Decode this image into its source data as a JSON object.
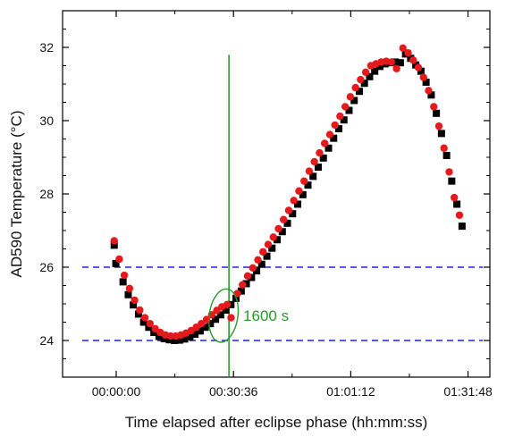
{
  "chart_data": {
    "type": "scatter",
    "xlabel": "Time elapsed after eclipse phase (hh:mm:ss)",
    "ylabel": "AD590 Temperature (°C)",
    "x_unit": "hh:mm:ss",
    "xlim": [
      "-00:14:00",
      "01:37:30"
    ],
    "ylim": [
      23.0,
      33.0
    ],
    "x_ticks": [
      "00:00:00",
      "00:30:36",
      "01:01:12",
      "01:31:48"
    ],
    "y_ticks": [
      "24",
      "26",
      "28",
      "30",
      "32"
    ],
    "grid": false,
    "series": [
      {
        "marker": "square",
        "color": "#000000",
        "points": [
          [
            "-00:00:32",
            26.6
          ],
          [
            "-00:00:06",
            26.1
          ],
          [
            "00:01:47",
            25.6
          ],
          [
            "00:03:08",
            25.25
          ],
          [
            "00:04:28",
            24.97
          ],
          [
            "00:05:49",
            24.72
          ],
          [
            "00:07:09",
            24.5
          ],
          [
            "00:08:29",
            24.36
          ],
          [
            "00:09:50",
            24.22
          ],
          [
            "00:11:10",
            24.11
          ],
          [
            "00:12:31",
            24.05
          ],
          [
            "00:13:51",
            24.02
          ],
          [
            "00:15:12",
            24.0
          ],
          [
            "00:16:32",
            24.01
          ],
          [
            "00:17:52",
            24.04
          ],
          [
            "00:19:13",
            24.1
          ],
          [
            "00:20:33",
            24.17
          ],
          [
            "00:21:54",
            24.26
          ],
          [
            "00:23:14",
            24.36
          ],
          [
            "00:24:34",
            24.46
          ],
          [
            "00:25:55",
            24.58
          ],
          [
            "00:27:15",
            24.7
          ],
          [
            "00:28:36",
            24.83
          ],
          [
            "00:29:56",
            24.98
          ],
          [
            "00:31:16",
            25.15
          ],
          [
            "00:32:37",
            25.35
          ],
          [
            "00:33:57",
            25.55
          ],
          [
            "00:35:18",
            25.72
          ],
          [
            "00:36:38",
            25.9
          ],
          [
            "00:37:58",
            26.08
          ],
          [
            "00:39:19",
            26.3
          ],
          [
            "00:40:39",
            26.52
          ],
          [
            "00:42:00",
            26.75
          ],
          [
            "00:43:20",
            26.97
          ],
          [
            "00:44:40",
            27.2
          ],
          [
            "00:46:01",
            27.46
          ],
          [
            "00:47:21",
            27.72
          ],
          [
            "00:48:42",
            27.98
          ],
          [
            "00:50:02",
            28.24
          ],
          [
            "00:51:22",
            28.48
          ],
          [
            "00:52:43",
            28.73
          ],
          [
            "00:54:03",
            28.98
          ],
          [
            "00:55:24",
            29.25
          ],
          [
            "00:56:44",
            29.52
          ],
          [
            "00:58:04",
            29.78
          ],
          [
            "00:59:25",
            30.02
          ],
          [
            "01:00:45",
            30.28
          ],
          [
            "01:02:06",
            30.55
          ],
          [
            "01:03:26",
            30.8
          ],
          [
            "01:04:46",
            31.02
          ],
          [
            "01:06:07",
            31.2
          ],
          [
            "01:07:27",
            31.35
          ],
          [
            "01:08:48",
            31.48
          ],
          [
            "01:10:08",
            31.55
          ],
          [
            "01:11:28",
            31.58
          ],
          [
            "01:12:49",
            31.6
          ],
          [
            "01:14:09",
            31.58
          ],
          [
            "01:15:30",
            31.82
          ],
          [
            "01:16:50",
            31.7
          ],
          [
            "01:18:10",
            31.52
          ],
          [
            "01:19:31",
            31.35
          ],
          [
            "01:20:51",
            31.05
          ],
          [
            "01:22:12",
            30.7
          ],
          [
            "01:23:32",
            30.2
          ],
          [
            "01:24:52",
            29.65
          ],
          [
            "01:26:13",
            29.05
          ],
          [
            "01:27:33",
            28.35
          ],
          [
            "01:28:54",
            27.72
          ],
          [
            "01:30:14",
            27.12
          ]
        ]
      },
      {
        "marker": "circle",
        "color": "#e41a1c",
        "points": [
          [
            "-00:00:32",
            26.72
          ],
          [
            "00:00:47",
            26.22
          ],
          [
            "00:02:07",
            25.78
          ],
          [
            "00:03:28",
            25.42
          ],
          [
            "00:04:48",
            25.1
          ],
          [
            "00:06:09",
            24.83
          ],
          [
            "00:07:29",
            24.62
          ],
          [
            "00:08:49",
            24.46
          ],
          [
            "00:10:10",
            24.32
          ],
          [
            "00:11:30",
            24.22
          ],
          [
            "00:12:51",
            24.15
          ],
          [
            "00:14:11",
            24.12
          ],
          [
            "00:15:32",
            24.12
          ],
          [
            "00:16:52",
            24.15
          ],
          [
            "00:18:12",
            24.2
          ],
          [
            "00:19:33",
            24.27
          ],
          [
            "00:20:53",
            24.36
          ],
          [
            "00:22:14",
            24.46
          ],
          [
            "00:23:34",
            24.57
          ],
          [
            "00:24:54",
            24.7
          ],
          [
            "00:26:15",
            24.82
          ],
          [
            "00:27:35",
            24.92
          ],
          [
            "00:28:56",
            24.98
          ],
          [
            "00:29:58",
            24.62
          ],
          [
            "00:31:36",
            25.28
          ],
          [
            "00:32:57",
            25.52
          ],
          [
            "00:34:17",
            25.76
          ],
          [
            "00:35:38",
            25.98
          ],
          [
            "00:36:58",
            26.2
          ],
          [
            "00:38:18",
            26.42
          ],
          [
            "00:39:39",
            26.62
          ],
          [
            "00:40:59",
            26.82
          ],
          [
            "00:42:20",
            27.05
          ],
          [
            "00:43:40",
            27.3
          ],
          [
            "00:45:00",
            27.55
          ],
          [
            "00:46:21",
            27.82
          ],
          [
            "00:47:41",
            28.08
          ],
          [
            "00:49:02",
            28.35
          ],
          [
            "00:50:22",
            28.62
          ],
          [
            "00:51:42",
            28.88
          ],
          [
            "00:53:03",
            29.12
          ],
          [
            "00:54:23",
            29.38
          ],
          [
            "00:55:44",
            29.62
          ],
          [
            "00:57:04",
            29.88
          ],
          [
            "00:58:24",
            30.12
          ],
          [
            "00:59:45",
            30.38
          ],
          [
            "01:01:05",
            30.65
          ],
          [
            "01:02:26",
            30.9
          ],
          [
            "01:03:46",
            31.12
          ],
          [
            "01:05:06",
            31.32
          ],
          [
            "01:06:27",
            31.5
          ],
          [
            "01:07:47",
            31.55
          ],
          [
            "01:09:08",
            31.6
          ],
          [
            "01:10:28",
            31.62
          ],
          [
            "01:11:48",
            31.6
          ],
          [
            "01:13:09",
            31.42
          ],
          [
            "01:14:49",
            31.98
          ],
          [
            "01:16:10",
            31.85
          ],
          [
            "01:17:30",
            31.65
          ],
          [
            "01:18:50",
            31.45
          ],
          [
            "01:20:11",
            31.18
          ],
          [
            "01:21:31",
            30.82
          ],
          [
            "01:22:52",
            30.38
          ],
          [
            "01:24:12",
            29.85
          ],
          [
            "01:25:32",
            29.25
          ],
          [
            "01:26:53",
            28.6
          ],
          [
            "01:28:13",
            27.9
          ],
          [
            "01:29:34",
            27.42
          ]
        ]
      }
    ],
    "reference_lines": [
      {
        "orientation": "horizontal",
        "y": 26.0,
        "color": "#2222dd",
        "style": "dashed"
      },
      {
        "orientation": "horizontal",
        "y": 24.0,
        "color": "#2222dd",
        "style": "dashed"
      },
      {
        "orientation": "vertical",
        "x": "00:29:25",
        "color": "#2a9a2a",
        "style": "solid"
      }
    ],
    "annotations": [
      {
        "text": "1600 s",
        "color": "#2a9a2a",
        "shape": "ellipse",
        "center": [
          "00:28:00",
          24.68
        ]
      }
    ]
  }
}
